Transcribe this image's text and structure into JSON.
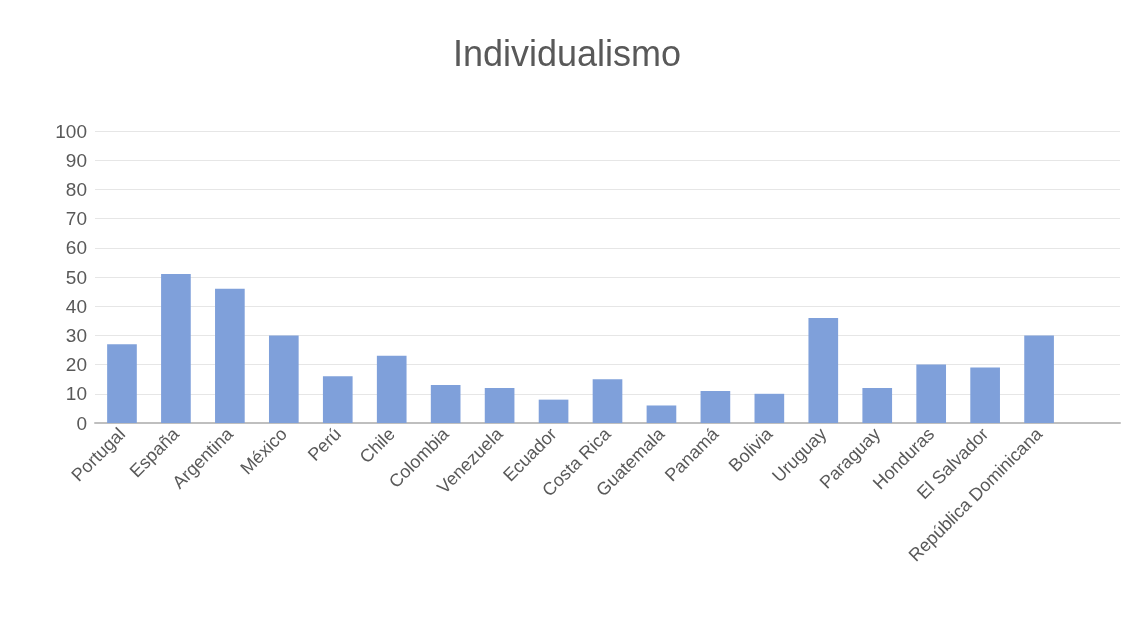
{
  "chart_data": {
    "type": "bar",
    "title": "Individualismo",
    "categories": [
      "Portugal",
      "España",
      "Argentina",
      "México",
      "Perú",
      "Chile",
      "Colombia",
      "Venezuela",
      "Ecuador",
      "Costa Rica",
      "Guatemala",
      "Panamá",
      "Bolivia",
      "Uruguay",
      "Paraguay",
      "Honduras",
      "El Salvador",
      "República Dominicana",
      null
    ],
    "values": [
      27,
      51,
      46,
      30,
      16,
      23,
      13,
      12,
      8,
      15,
      6,
      11,
      10,
      36,
      12,
      20,
      19,
      30,
      null
    ],
    "color": "#7fa0da",
    "ylim": [
      0,
      100
    ],
    "yticks": [
      0,
      10,
      20,
      30,
      40,
      50,
      60,
      70,
      80,
      90,
      100
    ],
    "grid": "y"
  }
}
